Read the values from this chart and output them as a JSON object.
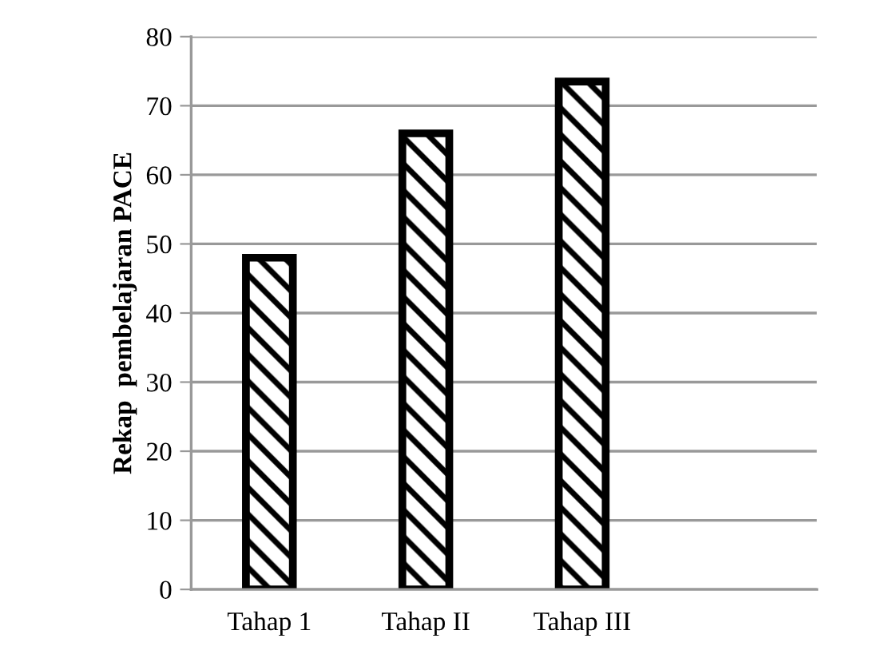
{
  "chart_data": {
    "type": "bar",
    "ylabel": "Rekap  pembelajaran PACE",
    "categories": [
      "Tahap 1",
      "Tahap II",
      "Tahap III",
      null
    ],
    "values": [
      48,
      66,
      73.5,
      null
    ],
    "color": "#000000",
    "ylim": [
      0,
      80
    ],
    "yticks": [
      0,
      10,
      20,
      30,
      40,
      50,
      60,
      70,
      80
    ],
    "grid": "y",
    "legend": false
  }
}
